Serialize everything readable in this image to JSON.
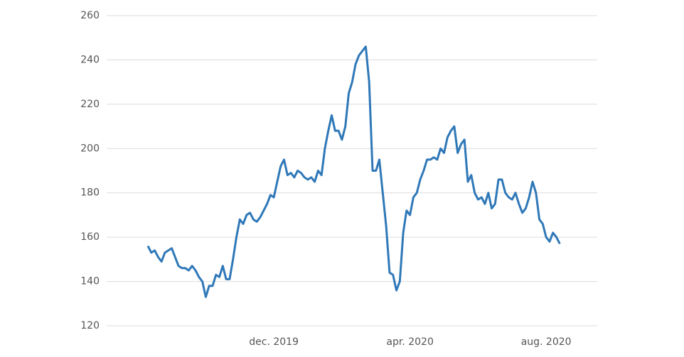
{
  "chart_data": {
    "type": "line",
    "color": "#2f78b8",
    "grid": true,
    "ylim": [
      120,
      260
    ],
    "yticks": [
      120,
      140,
      160,
      180,
      200,
      220,
      240,
      260
    ],
    "categories": [
      null,
      null,
      null,
      null,
      null,
      null,
      null,
      null,
      null,
      null,
      null,
      null,
      null,
      null,
      null,
      null,
      null,
      null,
      null,
      null,
      null,
      null,
      null,
      null,
      null,
      null,
      null,
      null,
      null,
      null,
      null,
      null,
      null,
      null,
      null,
      null,
      null,
      "dec. 2019",
      null,
      null,
      null,
      null,
      null,
      null,
      null,
      null,
      null,
      null,
      null,
      null,
      null,
      null,
      null,
      null,
      null,
      null,
      null,
      null,
      null,
      null,
      null,
      null,
      null,
      null,
      null,
      null,
      null,
      null,
      null,
      null,
      null,
      null,
      null,
      null,
      null,
      null,
      null,
      "apr. 2020",
      null,
      null,
      null,
      null,
      null,
      null,
      null,
      null,
      null,
      null,
      null,
      null,
      null,
      null,
      null,
      null,
      null,
      null,
      null,
      null,
      null,
      null,
      null,
      null,
      null,
      null,
      null,
      null,
      null,
      null,
      null,
      null,
      null,
      null,
      null,
      null,
      null,
      null,
      null,
      "aug. 2020",
      null,
      null,
      null,
      null
    ],
    "values": [
      156,
      153,
      154,
      151,
      149,
      153,
      154,
      155,
      151,
      147,
      146,
      146,
      145,
      147,
      145,
      142,
      140,
      133,
      138,
      138,
      143,
      142,
      147,
      141,
      141,
      150,
      160,
      168,
      166,
      170,
      171,
      168,
      167,
      169,
      172,
      175,
      179,
      178,
      185,
      192,
      195,
      188,
      189,
      187,
      190,
      189,
      187,
      186,
      187,
      185,
      190,
      188,
      200,
      208,
      215,
      208,
      208,
      204,
      210,
      225,
      230,
      238,
      242,
      244,
      246,
      230,
      190,
      190,
      195,
      180,
      165,
      144,
      143,
      136,
      140,
      162,
      172,
      170,
      178,
      180,
      186,
      190,
      195,
      195,
      196,
      195,
      200,
      198,
      205,
      208,
      210,
      198,
      202,
      204,
      185,
      188,
      180,
      177,
      178,
      175,
      180,
      173,
      175,
      186,
      186,
      180,
      178,
      177,
      180,
      175,
      171,
      173,
      178,
      185,
      180,
      168,
      166,
      160,
      158,
      162,
      160,
      157
    ]
  }
}
